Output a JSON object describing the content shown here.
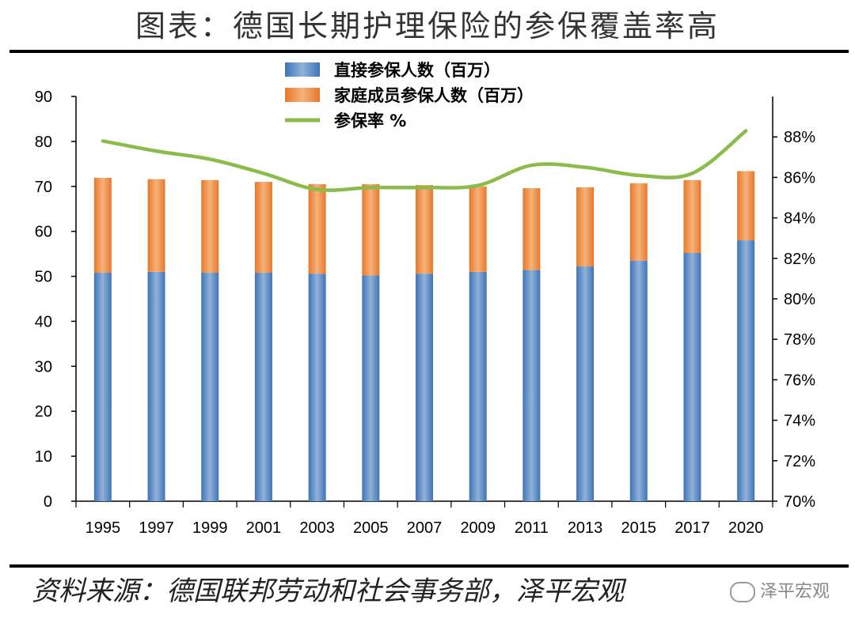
{
  "header": {
    "title": "图表：德国长期护理保险的参保覆盖率高"
  },
  "footer": {
    "source": "资料来源：德国联邦劳动和社会事务部，泽平宏观",
    "watermark": "泽平宏观"
  },
  "colors": {
    "direct": "#4a7fc0",
    "family": "#ee8a3a",
    "rate": "#8bbb4a"
  },
  "chart_data": {
    "type": "bar",
    "categories": [
      "1995",
      "1997",
      "1999",
      "2001",
      "2003",
      "2005",
      "2007",
      "2009",
      "2011",
      "2013",
      "2015",
      "2017",
      "2020"
    ],
    "series": [
      {
        "name": "直接参保人数（百万）",
        "kind": "stacked-bar",
        "axis": "left",
        "values": [
          50.8,
          51.0,
          50.8,
          50.8,
          50.6,
          50.2,
          50.6,
          51.0,
          51.4,
          52.2,
          53.5,
          55.2,
          58.0
        ]
      },
      {
        "name": "家庭成员参保人数（百万）",
        "kind": "stacked-bar",
        "axis": "left",
        "values": [
          21.1,
          20.6,
          20.6,
          20.2,
          19.9,
          20.3,
          19.7,
          19.0,
          18.2,
          17.6,
          17.2,
          16.2,
          15.4
        ]
      },
      {
        "name": "参保率 %",
        "kind": "line",
        "axis": "right",
        "values": [
          87.8,
          87.3,
          86.9,
          86.2,
          85.4,
          85.5,
          85.5,
          85.6,
          86.6,
          86.5,
          86.1,
          86.2,
          88.3
        ]
      }
    ],
    "ylim_left": [
      0,
      90
    ],
    "yticks_left": [
      "0",
      "10",
      "20",
      "30",
      "40",
      "50",
      "60",
      "70",
      "80",
      "90"
    ],
    "ylim_right": [
      70,
      90
    ],
    "yticks_right": [
      "70%",
      "72%",
      "74%",
      "76%",
      "78%",
      "80%",
      "82%",
      "84%",
      "86%",
      "88%"
    ],
    "legend_position": "top-center",
    "grid": false
  }
}
